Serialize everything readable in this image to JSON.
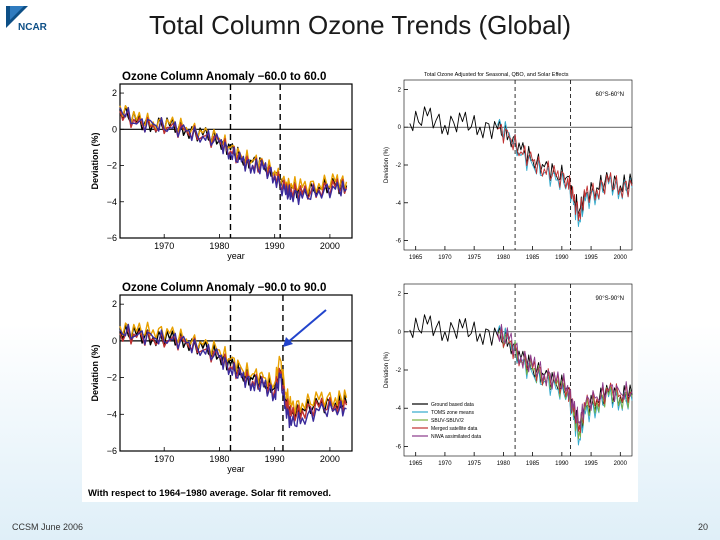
{
  "slide": {
    "logo_text": "NCAR",
    "title": "Total Column Ozone Trends (Global)",
    "footer_left": "CCSM June 2006",
    "page_number": "20",
    "background_accent": "#dfeff8",
    "arrow_color": "#2244cc"
  },
  "panels_left_note": "With respect to 1964−1980 average.  Solar fit removed.",
  "chart_data": [
    {
      "type": "line",
      "panel": "top-left",
      "title": "Ozone Column Anomaly −60.0 to 60.0",
      "xlabel": "year",
      "ylabel": "Deviation (%)",
      "xlim": [
        1962,
        2004
      ],
      "ylim": [
        -6,
        2.5
      ],
      "xticks": [
        1970,
        1980,
        1990,
        2000
      ],
      "yticks": [
        2,
        0,
        -2,
        -4,
        -6
      ],
      "xtick_labels": [
        "1970",
        "1980",
        "1990",
        "2000"
      ],
      "ytick_labels": [
        "2",
        "0",
        "−2",
        "−4",
        "−6"
      ],
      "vlines": [
        1982,
        1991
      ],
      "hline": 0,
      "x": [
        1962,
        1965,
        1968,
        1971,
        1974,
        1977,
        1980,
        1982,
        1984,
        1986,
        1988,
        1990,
        1992,
        1993,
        1995,
        1998,
        2001,
        2003
      ],
      "series": [
        {
          "color": "#000000",
          "values": [
            1.1,
            0.4,
            0.3,
            0.2,
            0.0,
            -0.3,
            -0.6,
            -1.1,
            -1.6,
            -1.8,
            -2.0,
            -2.4,
            -3.3,
            -3.2,
            -3.5,
            -3.2,
            -3.1,
            -3.1
          ]
        },
        {
          "color": "#e8a000",
          "values": [
            1.3,
            0.5,
            0.4,
            0.3,
            0.1,
            -0.2,
            -0.5,
            -1.0,
            -1.5,
            -1.7,
            -1.9,
            -2.3,
            -3.1,
            -3.0,
            -3.2,
            -3.0,
            -2.9,
            -2.9
          ]
        },
        {
          "color": "#c03030",
          "values": [
            1.0,
            0.3,
            0.2,
            0.1,
            -0.1,
            -0.4,
            -0.7,
            -1.2,
            -1.7,
            -2.0,
            -2.1,
            -2.5,
            -3.4,
            -3.3,
            -3.6,
            -3.3,
            -3.2,
            -3.2
          ]
        },
        {
          "color": "#3a2a9a",
          "values": [
            1.2,
            0.3,
            0.3,
            0.1,
            -0.1,
            -0.4,
            -0.7,
            -1.3,
            -1.8,
            -2.0,
            -2.2,
            -2.6,
            -3.6,
            -3.5,
            -3.8,
            -3.4,
            -3.3,
            -3.3
          ]
        }
      ]
    },
    {
      "type": "line",
      "panel": "bottom-left",
      "title": "Ozone Column Anomaly −90.0 to 90.0",
      "xlabel": "year",
      "ylabel": "Deviation (%)",
      "xlim": [
        1962,
        2004
      ],
      "ylim": [
        -6,
        2.5
      ],
      "xticks": [
        1970,
        1980,
        1990,
        2000
      ],
      "yticks": [
        2,
        0,
        -2,
        -4,
        -6
      ],
      "xtick_labels": [
        "1970",
        "1980",
        "1990",
        "2000"
      ],
      "ytick_labels": [
        "2",
        "0",
        "−2",
        "−4",
        "−6"
      ],
      "vlines": [
        1982,
        1991.5
      ],
      "hline": 0,
      "x": [
        1962,
        1965,
        1968,
        1971,
        1974,
        1977,
        1980,
        1982,
        1984,
        1986,
        1988,
        1990,
        1991,
        1992,
        1993,
        1995,
        1998,
        2001,
        2003
      ],
      "series": [
        {
          "color": "#000000",
          "values": [
            0.5,
            0.3,
            0.2,
            0.1,
            0.0,
            -0.4,
            -0.8,
            -1.3,
            -1.8,
            -2.1,
            -2.3,
            -2.6,
            -1.6,
            -3.2,
            -4.0,
            -3.7,
            -3.5,
            -3.4,
            -3.4
          ]
        },
        {
          "color": "#e8a000",
          "values": [
            0.8,
            0.5,
            0.6,
            0.4,
            0.1,
            -0.2,
            -0.5,
            -1.0,
            -1.5,
            -1.8,
            -2.0,
            -2.3,
            -1.0,
            -2.8,
            -3.6,
            -3.4,
            -3.2,
            -3.1,
            -3.1
          ]
        },
        {
          "color": "#c03030",
          "values": [
            0.4,
            0.2,
            0.1,
            0.0,
            -0.1,
            -0.5,
            -0.9,
            -1.4,
            -1.9,
            -2.2,
            -2.4,
            -2.7,
            -1.8,
            -3.3,
            -4.1,
            -3.8,
            -3.6,
            -3.5,
            -3.5
          ]
        },
        {
          "color": "#3a2a9a",
          "values": [
            0.6,
            0.3,
            0.2,
            0.1,
            -0.1,
            -0.5,
            -0.9,
            -1.5,
            -2.0,
            -2.3,
            -2.5,
            -2.9,
            -2.0,
            -3.6,
            -4.6,
            -4.2,
            -3.8,
            -3.7,
            -3.7
          ]
        }
      ]
    },
    {
      "type": "line",
      "panel": "top-right",
      "title": "Total Ozone Adjusted for Seasonal, QBO, and Solar Effects",
      "legend_text": "60°S-60°N",
      "xlabel": "",
      "ylabel": "Deviation (%)",
      "xlim": [
        1963,
        2002
      ],
      "ylim": [
        -6.5,
        2.5
      ],
      "xticks": [
        1965,
        1970,
        1975,
        1980,
        1985,
        1990,
        1995,
        2000
      ],
      "yticks": [
        2,
        0,
        -2,
        -4,
        -6
      ],
      "xtick_labels": [
        "1965",
        "1970",
        "1975",
        "1980",
        "1985",
        "1990",
        "1995",
        "2000"
      ],
      "ytick_labels": [
        "2",
        "0",
        "-2",
        "-4",
        "-6"
      ],
      "vlines": [
        1982,
        1991.5
      ],
      "hline": 0,
      "x": [
        1964,
        1967,
        1970,
        1973,
        1976,
        1979,
        1981,
        1983,
        1985,
        1987,
        1989,
        1991,
        1992,
        1993,
        1994,
        1996,
        1998,
        2000,
        2002
      ],
      "series": [
        {
          "color": "#000000",
          "values": [
            0.2,
            0.6,
            0.1,
            0.3,
            0.0,
            -0.1,
            -0.4,
            -1.2,
            -1.7,
            -2.1,
            -2.5,
            -2.6,
            -3.8,
            -4.4,
            -3.6,
            -3.2,
            -2.8,
            -3.1,
            -3.0
          ]
        },
        {
          "color": "#33aacc",
          "values": [
            null,
            null,
            null,
            null,
            null,
            0.1,
            -0.3,
            -1.5,
            -2.0,
            -2.4,
            -2.8,
            -2.9,
            -4.1,
            -4.9,
            -3.9,
            -3.5,
            -3.0,
            -3.3,
            -3.2
          ]
        },
        {
          "color": "#c03030",
          "values": [
            null,
            null,
            null,
            null,
            null,
            -0.1,
            -0.5,
            -1.3,
            -1.8,
            -2.2,
            -2.6,
            -2.7,
            -3.9,
            -4.5,
            -3.7,
            -3.3,
            -2.9,
            -3.2,
            -3.1
          ]
        }
      ]
    },
    {
      "type": "line",
      "panel": "bottom-right",
      "legend_text": "90°S-90°N",
      "xlabel": "",
      "ylabel": "Deviation (%)",
      "xlim": [
        1963,
        2002
      ],
      "ylim": [
        -6.5,
        2.5
      ],
      "xticks": [
        1965,
        1970,
        1975,
        1980,
        1985,
        1990,
        1995,
        2000
      ],
      "yticks": [
        2,
        0,
        -2,
        -4,
        -6
      ],
      "xtick_labels": [
        "1965",
        "1970",
        "1975",
        "1980",
        "1985",
        "1990",
        "1995",
        "2000"
      ],
      "ytick_labels": [
        "2",
        "0",
        "-2",
        "-4",
        "-6"
      ],
      "vlines": [
        1982,
        1991.5
      ],
      "hline": 0,
      "legend": [
        "Ground based data",
        "TOMS zone means",
        "SBUV-SBUV/2",
        "Merged satellite data",
        "NIWA assimilated data"
      ],
      "x": [
        1964,
        1967,
        1970,
        1973,
        1976,
        1979,
        1981,
        1983,
        1985,
        1987,
        1989,
        1991,
        1992,
        1993,
        1994,
        1996,
        1998,
        2000,
        2002
      ],
      "series": [
        {
          "name": "Ground based data",
          "color": "#000000",
          "values": [
            0.1,
            0.4,
            0.0,
            0.2,
            -0.1,
            -0.2,
            -0.5,
            -1.4,
            -1.9,
            -2.3,
            -2.7,
            -2.9,
            -4.3,
            -5.0,
            -4.0,
            -3.6,
            -3.2,
            -3.4,
            -3.3
          ]
        },
        {
          "name": "TOMS zone means",
          "color": "#33aacc",
          "values": [
            null,
            null,
            null,
            null,
            null,
            0.0,
            -0.4,
            -1.6,
            -2.2,
            -2.6,
            -3.0,
            -3.2,
            -4.6,
            -5.6,
            -4.3,
            -3.9,
            -3.4,
            -3.6,
            -3.6
          ]
        },
        {
          "name": "SBUV-SBUV/2",
          "color": "#7ab040",
          "values": [
            null,
            null,
            null,
            null,
            null,
            -0.1,
            -0.5,
            -1.5,
            -2.0,
            -2.4,
            -2.8,
            -3.0,
            -4.4,
            -5.2,
            -4.1,
            -3.7,
            -3.3,
            -3.5,
            -3.4
          ]
        },
        {
          "name": "Merged satellite data",
          "color": "#c03030",
          "values": [
            null,
            null,
            null,
            null,
            null,
            -0.2,
            -0.6,
            -1.4,
            -1.9,
            -2.3,
            -2.7,
            -2.9,
            -4.2,
            -4.9,
            -3.9,
            -3.5,
            -3.1,
            -3.3,
            -3.2
          ]
        },
        {
          "name": "NIWA assimilated data",
          "color": "#8a3a8a",
          "values": [
            null,
            null,
            null,
            null,
            null,
            0.0,
            -0.4,
            -1.3,
            -1.8,
            -2.2,
            -2.6,
            -2.8,
            -4.0,
            -4.7,
            -3.8,
            -3.4,
            -3.0,
            -3.2,
            -3.1
          ]
        }
      ]
    }
  ]
}
